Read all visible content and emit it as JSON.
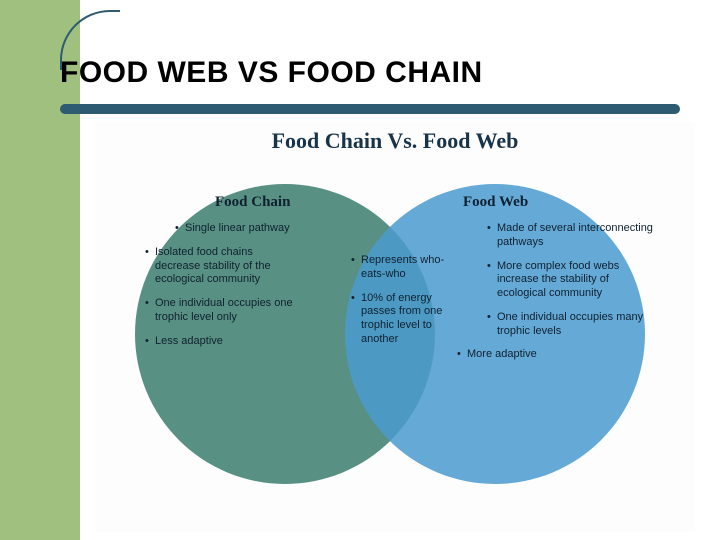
{
  "slide": {
    "title": "FOOD WEB VS FOOD CHAIN",
    "stripe_color": "#a0c080",
    "underline_color": "#2e5a72"
  },
  "venn": {
    "title": "Food Chain Vs. Food Web",
    "left": {
      "label": "Food Chain",
      "color": "#4a8878",
      "points": [
        "Single linear pathway",
        "Isolated food chains decrease stability of the ecological community",
        "One individual occupies one trophic level only",
        "",
        "Less adaptive"
      ]
    },
    "overlap": {
      "points": [
        "Represents who-eats-who",
        "10% of energy passes from one trophic level to another"
      ]
    },
    "right": {
      "label": "Food Web",
      "color": "#4a9bd0",
      "points": [
        "Made of several interconnecting pathways",
        "More complex food webs increase the stability of ecological community",
        "One individual occupies many trophic levels",
        "More adaptive"
      ]
    }
  }
}
